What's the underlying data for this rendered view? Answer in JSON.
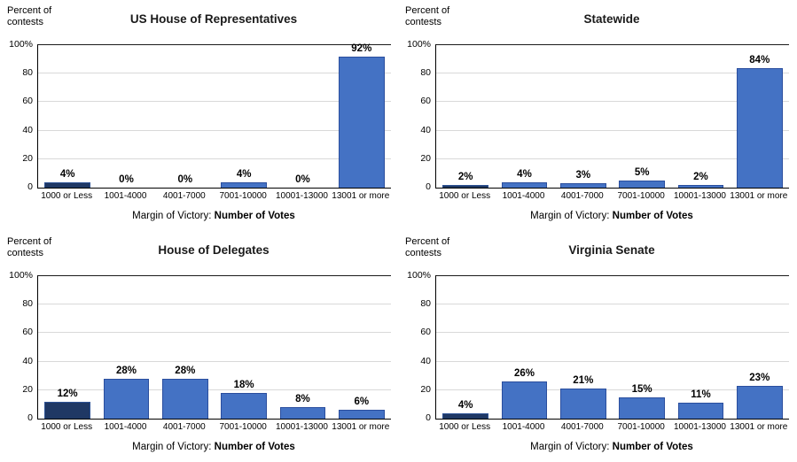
{
  "figure": {
    "description": "Four bar charts of margin of victory by number of votes for Virginia contests"
  },
  "shared": {
    "y_axis_title": "Percent of\ncontests",
    "x_axis_title_normal": "Margin of Victory: ",
    "x_axis_title_bold": "Number of Votes",
    "y_ticks": [
      {
        "label": "100%",
        "v": 100
      },
      {
        "label": "80",
        "v": 80
      },
      {
        "label": "60",
        "v": 60
      },
      {
        "label": "40",
        "v": 40
      },
      {
        "label": "20",
        "v": 20
      },
      {
        "label": "0",
        "v": 0
      }
    ],
    "colors": {
      "bar_fill": "#4472C4",
      "bar_border": "#2A4E9E",
      "first_bar_fill": "#1F3864",
      "first_bar_border": "#2E5395",
      "gridline": "#D9D9D9",
      "axis": "#000000"
    }
  },
  "chart_data": [
    {
      "type": "bar",
      "title": "US House of Representatives",
      "categories": [
        "1000 or Less",
        "1001-4000",
        "4001-7000",
        "7001-10000",
        "10001-13000",
        "13001 or more"
      ],
      "values": [
        4,
        0,
        0,
        4,
        0,
        92
      ],
      "labels": [
        "4%",
        "0%",
        "0%",
        "4%",
        "0%",
        "92%"
      ],
      "xlabel": "Margin of Victory: Number of Votes",
      "ylabel": "Percent of contests",
      "ylim": [
        0,
        100
      ],
      "grid": true,
      "legend": "none"
    },
    {
      "type": "bar",
      "title": "Statewide",
      "categories": [
        "1000 or Less",
        "1001-4000",
        "4001-7000",
        "7001-10000",
        "10001-13000",
        "13001 or more"
      ],
      "values": [
        2,
        4,
        3,
        5,
        2,
        84
      ],
      "labels": [
        "2%",
        "4%",
        "3%",
        "5%",
        "2%",
        "84%"
      ],
      "xlabel": "Margin of Victory: Number of Votes",
      "ylabel": "Percent of contests",
      "ylim": [
        0,
        100
      ],
      "grid": true,
      "legend": "none"
    },
    {
      "type": "bar",
      "title": "House of Delegates",
      "categories": [
        "1000 or Less",
        "1001-4000",
        "4001-7000",
        "7001-10000",
        "10001-13000",
        "13001 or more"
      ],
      "values": [
        12,
        28,
        28,
        18,
        8,
        6
      ],
      "labels": [
        "12%",
        "28%",
        "28%",
        "18%",
        "8%",
        "6%"
      ],
      "xlabel": "Margin of Victory: Number of Votes",
      "ylabel": "Percent of contests",
      "ylim": [
        0,
        100
      ],
      "grid": true,
      "legend": "none"
    },
    {
      "type": "bar",
      "title": "Virginia Senate",
      "categories": [
        "1000 or Less",
        "1001-4000",
        "4001-7000",
        "7001-10000",
        "10001-13000",
        "13001 or more"
      ],
      "values": [
        4,
        26,
        21,
        15,
        11,
        23
      ],
      "labels": [
        "4%",
        "26%",
        "21%",
        "15%",
        "11%",
        "23%"
      ],
      "xlabel": "Margin of Victory: Number of Votes",
      "ylabel": "Percent of contests",
      "ylim": [
        0,
        100
      ],
      "grid": true,
      "legend": "none"
    }
  ]
}
